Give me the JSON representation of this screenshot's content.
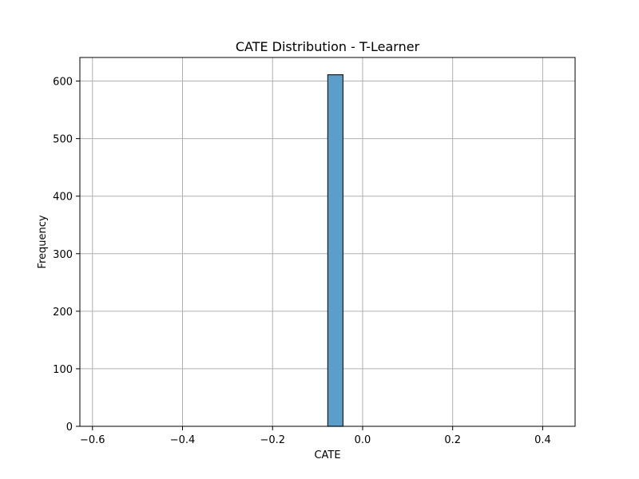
{
  "chart_data": {
    "type": "bar",
    "title": "CATE Distribution - T-Learner",
    "xlabel": "CATE",
    "ylabel": "Frequency",
    "xlim": [
      -0.628,
      0.472
    ],
    "ylim": [
      0,
      641
    ],
    "xticks": [
      -0.6,
      -0.4,
      -0.2,
      0.0,
      0.2,
      0.4
    ],
    "xtick_labels": [
      "−0.6",
      "−0.4",
      "−0.2",
      "0.0",
      "0.2",
      "0.4"
    ],
    "yticks": [
      0,
      100,
      200,
      300,
      400,
      500,
      600
    ],
    "ytick_labels": [
      "0",
      "100",
      "200",
      "300",
      "400",
      "500",
      "600"
    ],
    "grid": true,
    "bins": [
      {
        "x0": -0.0773,
        "x1": -0.0435,
        "count": 611
      }
    ],
    "colors": {
      "bar_fill": "#5b9ec9",
      "bar_edge": "#1f1f1f",
      "grid": "#b0b0b0",
      "axes": "#000000"
    }
  }
}
